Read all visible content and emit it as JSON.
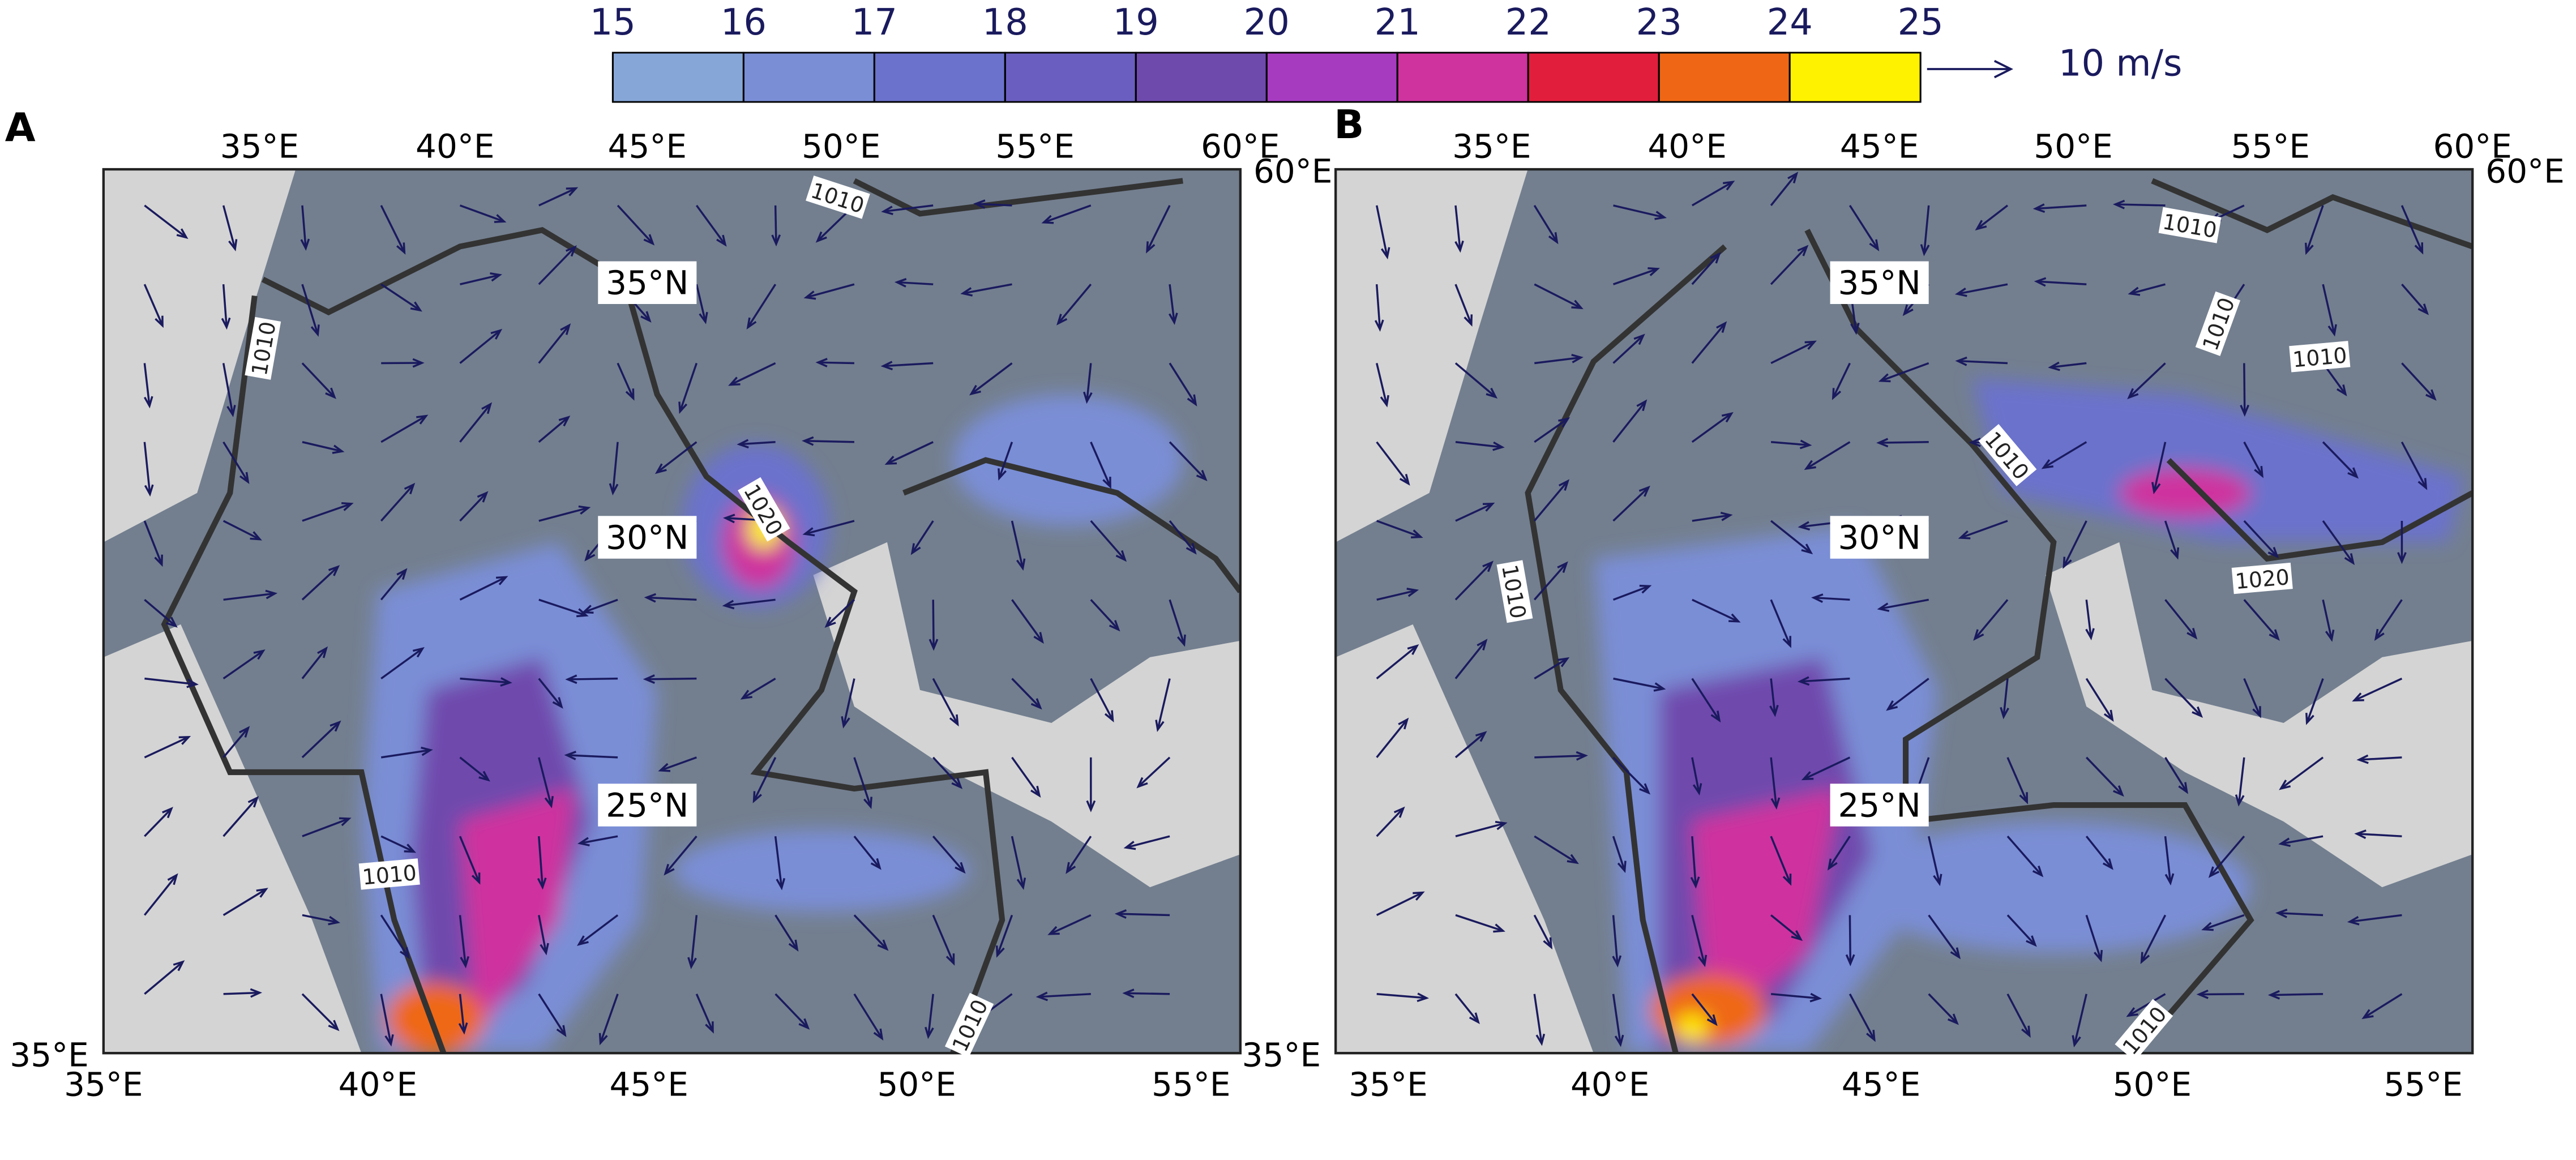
{
  "colorbar": {
    "ticks": [
      15,
      16,
      17,
      18,
      19,
      20,
      21,
      22,
      23,
      24,
      25
    ],
    "colors": [
      "#86a6d8",
      "#7a8ed6",
      "#6b72cc",
      "#6a5fc0",
      "#6f4aad",
      "#a63bc0",
      "#cf339e",
      "#e21e3d",
      "#ef6714",
      "#fff200"
    ]
  },
  "reference_vector": {
    "label": "10 m/s"
  },
  "panels": [
    {
      "label": "A",
      "top_lon_labels": [
        "35°E",
        "40°E",
        "45°E",
        "50°E",
        "55°E",
        "60°E"
      ],
      "right_label": "60°E",
      "bottom_lon_labels": [
        "35°E",
        "40°E",
        "45°E",
        "50°E",
        "55°E"
      ],
      "corner_label": "35°E",
      "lat_labels": [
        "35°N",
        "30°N",
        "25°N"
      ],
      "contour_labels": [
        "1010",
        "1010",
        "1010",
        "1010",
        "1020"
      ]
    },
    {
      "label": "B",
      "top_lon_labels": [
        "35°E",
        "40°E",
        "45°E",
        "50°E",
        "55°E",
        "60°E"
      ],
      "right_label": "60°E",
      "bottom_lon_labels": [
        "35°E",
        "40°E",
        "45°E",
        "50°E",
        "55°E"
      ],
      "corner_label": "35°E",
      "lat_labels": [
        "35°N",
        "30°N",
        "25°N"
      ],
      "contour_labels": [
        "1010",
        "1010",
        "1010",
        "1010",
        "1010",
        "1010",
        "1020"
      ]
    }
  ]
}
